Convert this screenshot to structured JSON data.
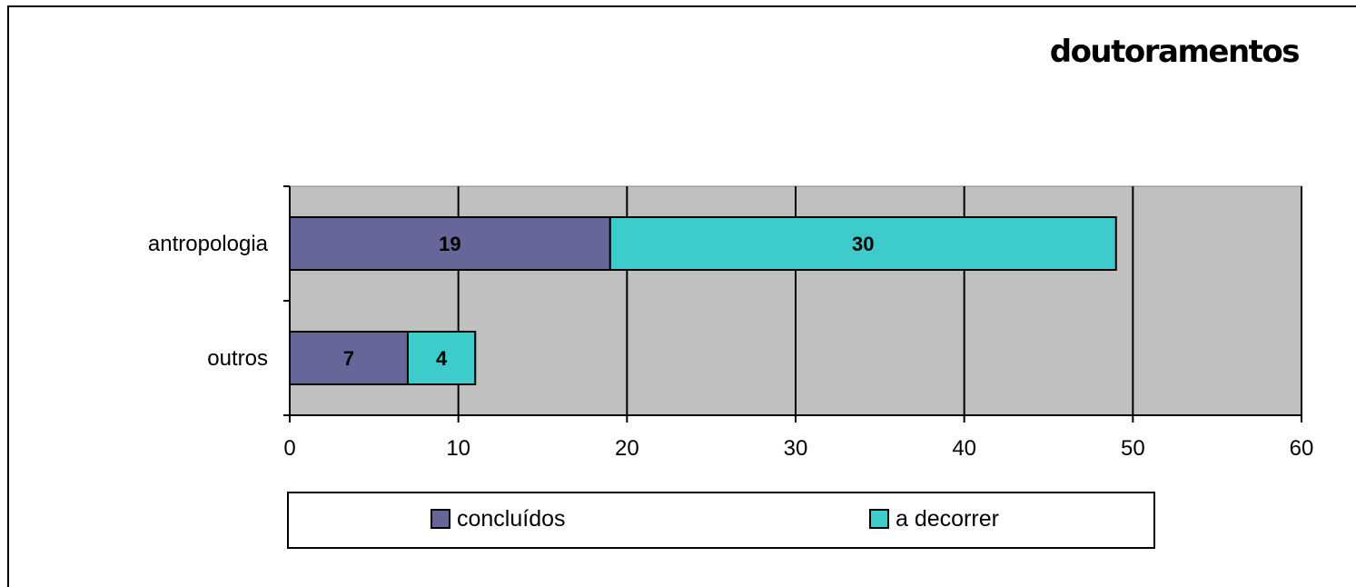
{
  "chart_data": {
    "type": "bar",
    "orientation": "horizontal",
    "stacked": true,
    "title": "doutoramentos",
    "xlabel": "",
    "ylabel": "",
    "categories": [
      "antropologia",
      "outros"
    ],
    "series": [
      {
        "name": "concluídos",
        "values": [
          19,
          7
        ],
        "color": "#666699"
      },
      {
        "name": "a decorrer",
        "values": [
          30,
          4
        ],
        "color": "#3ECBCB"
      }
    ],
    "xlim": [
      0,
      60
    ],
    "xticks": [
      "0",
      "10",
      "20",
      "30",
      "40",
      "50",
      "60"
    ],
    "grid": true,
    "plot_background": "#C0C0C0",
    "legend_position": "bottom",
    "data_labels": true
  }
}
